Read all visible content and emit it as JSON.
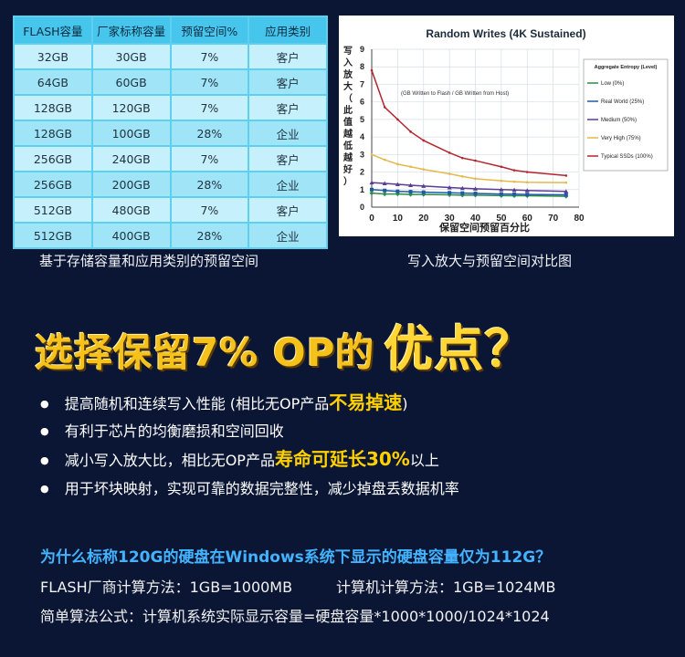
{
  "table": {
    "headers": [
      "FLASH容量",
      "厂家标称容量",
      "预留空间%",
      "应用类别"
    ],
    "rows": [
      [
        "32GB",
        "30GB",
        "7%",
        "客户"
      ],
      [
        "64GB",
        "60GB",
        "7%",
        "客户"
      ],
      [
        "128GB",
        "120GB",
        "7%",
        "客户"
      ],
      [
        "128GB",
        "100GB",
        "28%",
        "企业"
      ],
      [
        "256GB",
        "240GB",
        "7%",
        "客户"
      ],
      [
        "256GB",
        "200GB",
        "28%",
        "企业"
      ],
      [
        "512GB",
        "480GB",
        "7%",
        "客户"
      ],
      [
        "512GB",
        "400GB",
        "28%",
        "企业"
      ]
    ]
  },
  "captions": {
    "left": "基于存储容量和应用类别的预留空间",
    "right": "写入放大与预留空间对比图"
  },
  "chart_data": {
    "type": "line",
    "title": "Random Writes (4K Sustained)",
    "xlabel": "保留空间预留百分比",
    "ylabel": "写入放大（此值越低越好）",
    "annotation": "(GB Written to Flash / GB Written from Host)",
    "xlim": [
      0,
      80
    ],
    "ylim": [
      0,
      9
    ],
    "xticks": [
      0,
      10,
      20,
      30,
      40,
      50,
      60,
      70,
      80
    ],
    "yticks": [
      0,
      1,
      2,
      3,
      4,
      5,
      6,
      7,
      8,
      9
    ],
    "grid": true,
    "legend_title": "Aggregate Entropy (Level)",
    "legend_position": "right",
    "series": [
      {
        "name": "Low (0%)",
        "color": "#2a8c4a",
        "marker": "diamond",
        "points": [
          [
            0,
            0.8
          ],
          [
            5,
            0.75
          ],
          [
            10,
            0.75
          ],
          [
            15,
            0.72
          ],
          [
            20,
            0.72
          ],
          [
            30,
            0.7
          ],
          [
            35,
            0.68
          ],
          [
            40,
            0.68
          ],
          [
            50,
            0.66
          ],
          [
            55,
            0.65
          ],
          [
            60,
            0.65
          ],
          [
            75,
            0.62
          ]
        ]
      },
      {
        "name": "Real World (25%)",
        "color": "#1f5aa6",
        "marker": "square",
        "points": [
          [
            0,
            1.0
          ],
          [
            5,
            0.95
          ],
          [
            10,
            0.9
          ],
          [
            15,
            0.88
          ],
          [
            20,
            0.85
          ],
          [
            30,
            0.82
          ],
          [
            35,
            0.8
          ],
          [
            40,
            0.78
          ],
          [
            50,
            0.75
          ],
          [
            55,
            0.74
          ],
          [
            60,
            0.72
          ],
          [
            75,
            0.7
          ]
        ]
      },
      {
        "name": "Medium (50%)",
        "color": "#5a3c92",
        "marker": "triangle",
        "points": [
          [
            0,
            1.4
          ],
          [
            5,
            1.35
          ],
          [
            10,
            1.3
          ],
          [
            15,
            1.25
          ],
          [
            20,
            1.2
          ],
          [
            30,
            1.12
          ],
          [
            35,
            1.08
          ],
          [
            40,
            1.05
          ],
          [
            50,
            1.0
          ],
          [
            55,
            0.98
          ],
          [
            60,
            0.95
          ],
          [
            75,
            0.9
          ]
        ]
      },
      {
        "name": "Very High (75%)",
        "color": "#e3b94a",
        "marker": "none",
        "points": [
          [
            0,
            3.0
          ],
          [
            5,
            2.7
          ],
          [
            10,
            2.45
          ],
          [
            15,
            2.3
          ],
          [
            20,
            2.15
          ],
          [
            30,
            1.9
          ],
          [
            35,
            1.75
          ],
          [
            40,
            1.62
          ],
          [
            50,
            1.5
          ],
          [
            55,
            1.45
          ],
          [
            60,
            1.42
          ],
          [
            75,
            1.4
          ]
        ]
      },
      {
        "name": "Typical SSDs (100%)",
        "color": "#b3262e",
        "marker": "none",
        "points": [
          [
            0,
            7.8
          ],
          [
            5,
            5.7
          ],
          [
            10,
            5.0
          ],
          [
            15,
            4.3
          ],
          [
            20,
            3.8
          ],
          [
            30,
            3.1
          ],
          [
            35,
            2.8
          ],
          [
            40,
            2.65
          ],
          [
            50,
            2.3
          ],
          [
            55,
            2.1
          ],
          [
            60,
            2.0
          ],
          [
            75,
            1.8
          ]
        ]
      }
    ]
  },
  "headline": {
    "main": "选择保留7% OP的",
    "big": "优点？"
  },
  "bullets": [
    {
      "pre": "提高随机和连续写入性能 (相比无OP产品",
      "hl": "不易掉速",
      "post": ")"
    },
    {
      "pre": "有利于芯片的均衡磨损和空间回收",
      "hl": "",
      "post": ""
    },
    {
      "pre": "减小写入放大比，相比无OP产品",
      "hl": "寿命可延长30%",
      "post": "以上"
    },
    {
      "pre": "用于坏块映射，实现可靠的数据完整性，减少掉盘丢数据机率",
      "hl": "",
      "post": ""
    }
  ],
  "question": "为什么标称120G的硬盘在Windows系统下显示的硬盘容量仅为112G？",
  "calc": {
    "flash": "FLASH厂商计算方法：1GB=1000MB",
    "computer": "计算机计算方法：1GB=1024MB",
    "formula": "简单算法公式：计算机系统实际显示容量=硬盘容量*1000*1000/1024*1024"
  }
}
